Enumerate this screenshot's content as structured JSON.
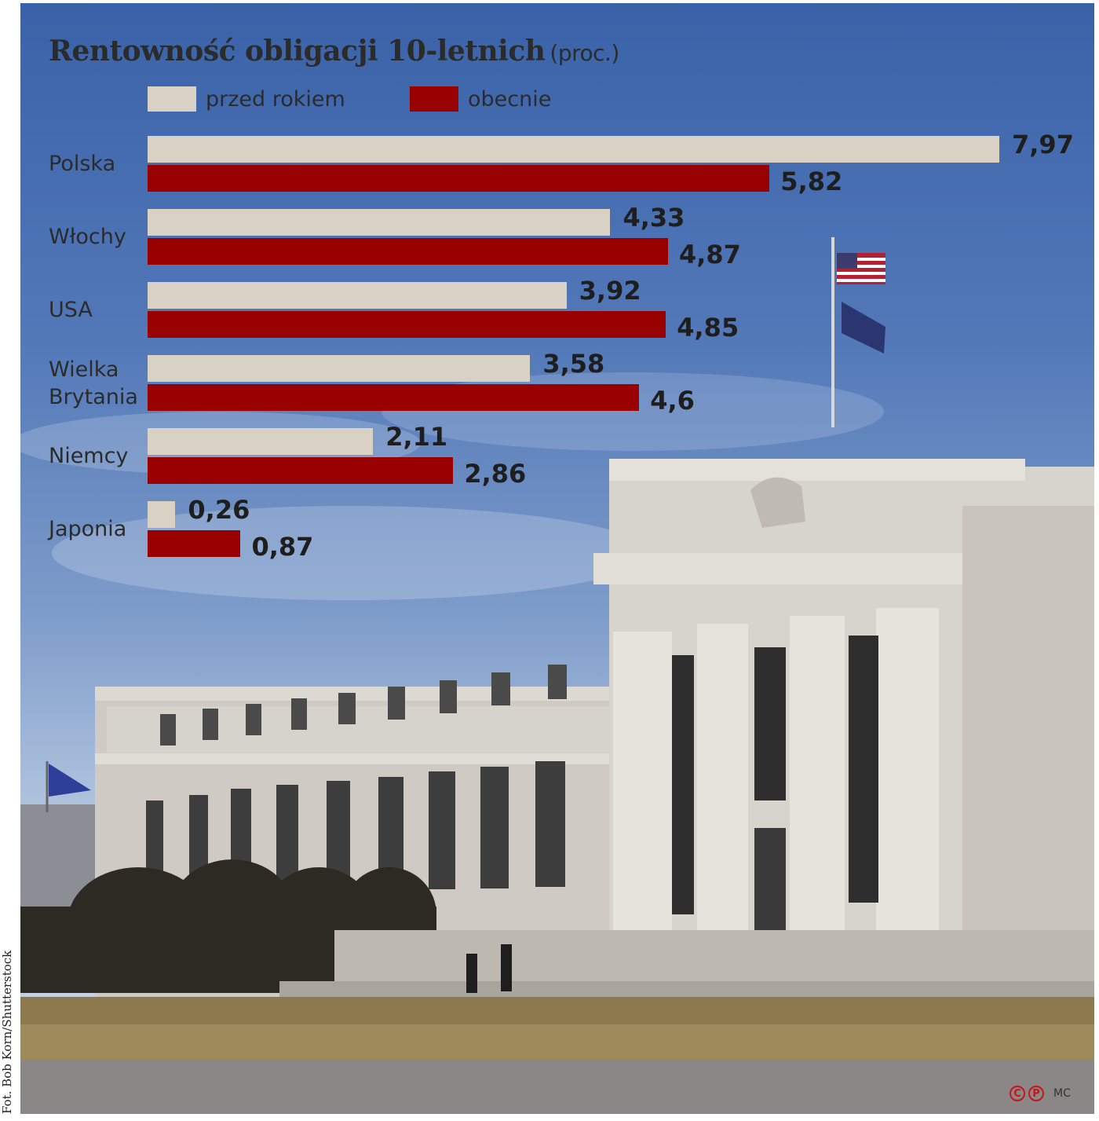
{
  "credit": "Fot. Bob Korn/Shutterstock",
  "colors": {
    "series_prev": "#d9d2c4",
    "series_now": "#990000"
  },
  "signature": {
    "marks": [
      "C",
      "P"
    ],
    "initials": "MC"
  },
  "chart_data": {
    "type": "bar",
    "orientation": "horizontal",
    "title": "Rentowność obligacji 10-letnich",
    "unit": "(proc.)",
    "categories": [
      "Polska",
      "Włochy",
      "USA",
      "Wielka\nBrytania",
      "Niemcy",
      "Japonia"
    ],
    "series": [
      {
        "name": "przed rokiem",
        "color": "#d9d2c4",
        "values": [
          7.97,
          4.33,
          3.92,
          3.58,
          2.11,
          0.26
        ],
        "labels": [
          "7,97",
          "4,33",
          "3,92",
          "3,58",
          "2,11",
          "0,26"
        ]
      },
      {
        "name": "obecnie",
        "color": "#990000",
        "values": [
          5.82,
          4.87,
          4.85,
          4.6,
          2.86,
          0.87
        ],
        "labels": [
          "5,82",
          "4,87",
          "4,85",
          "4,6",
          "2,86",
          "0,87"
        ]
      }
    ],
    "xlim": [
      0,
      7.97
    ],
    "legend": "top",
    "grid": false
  }
}
